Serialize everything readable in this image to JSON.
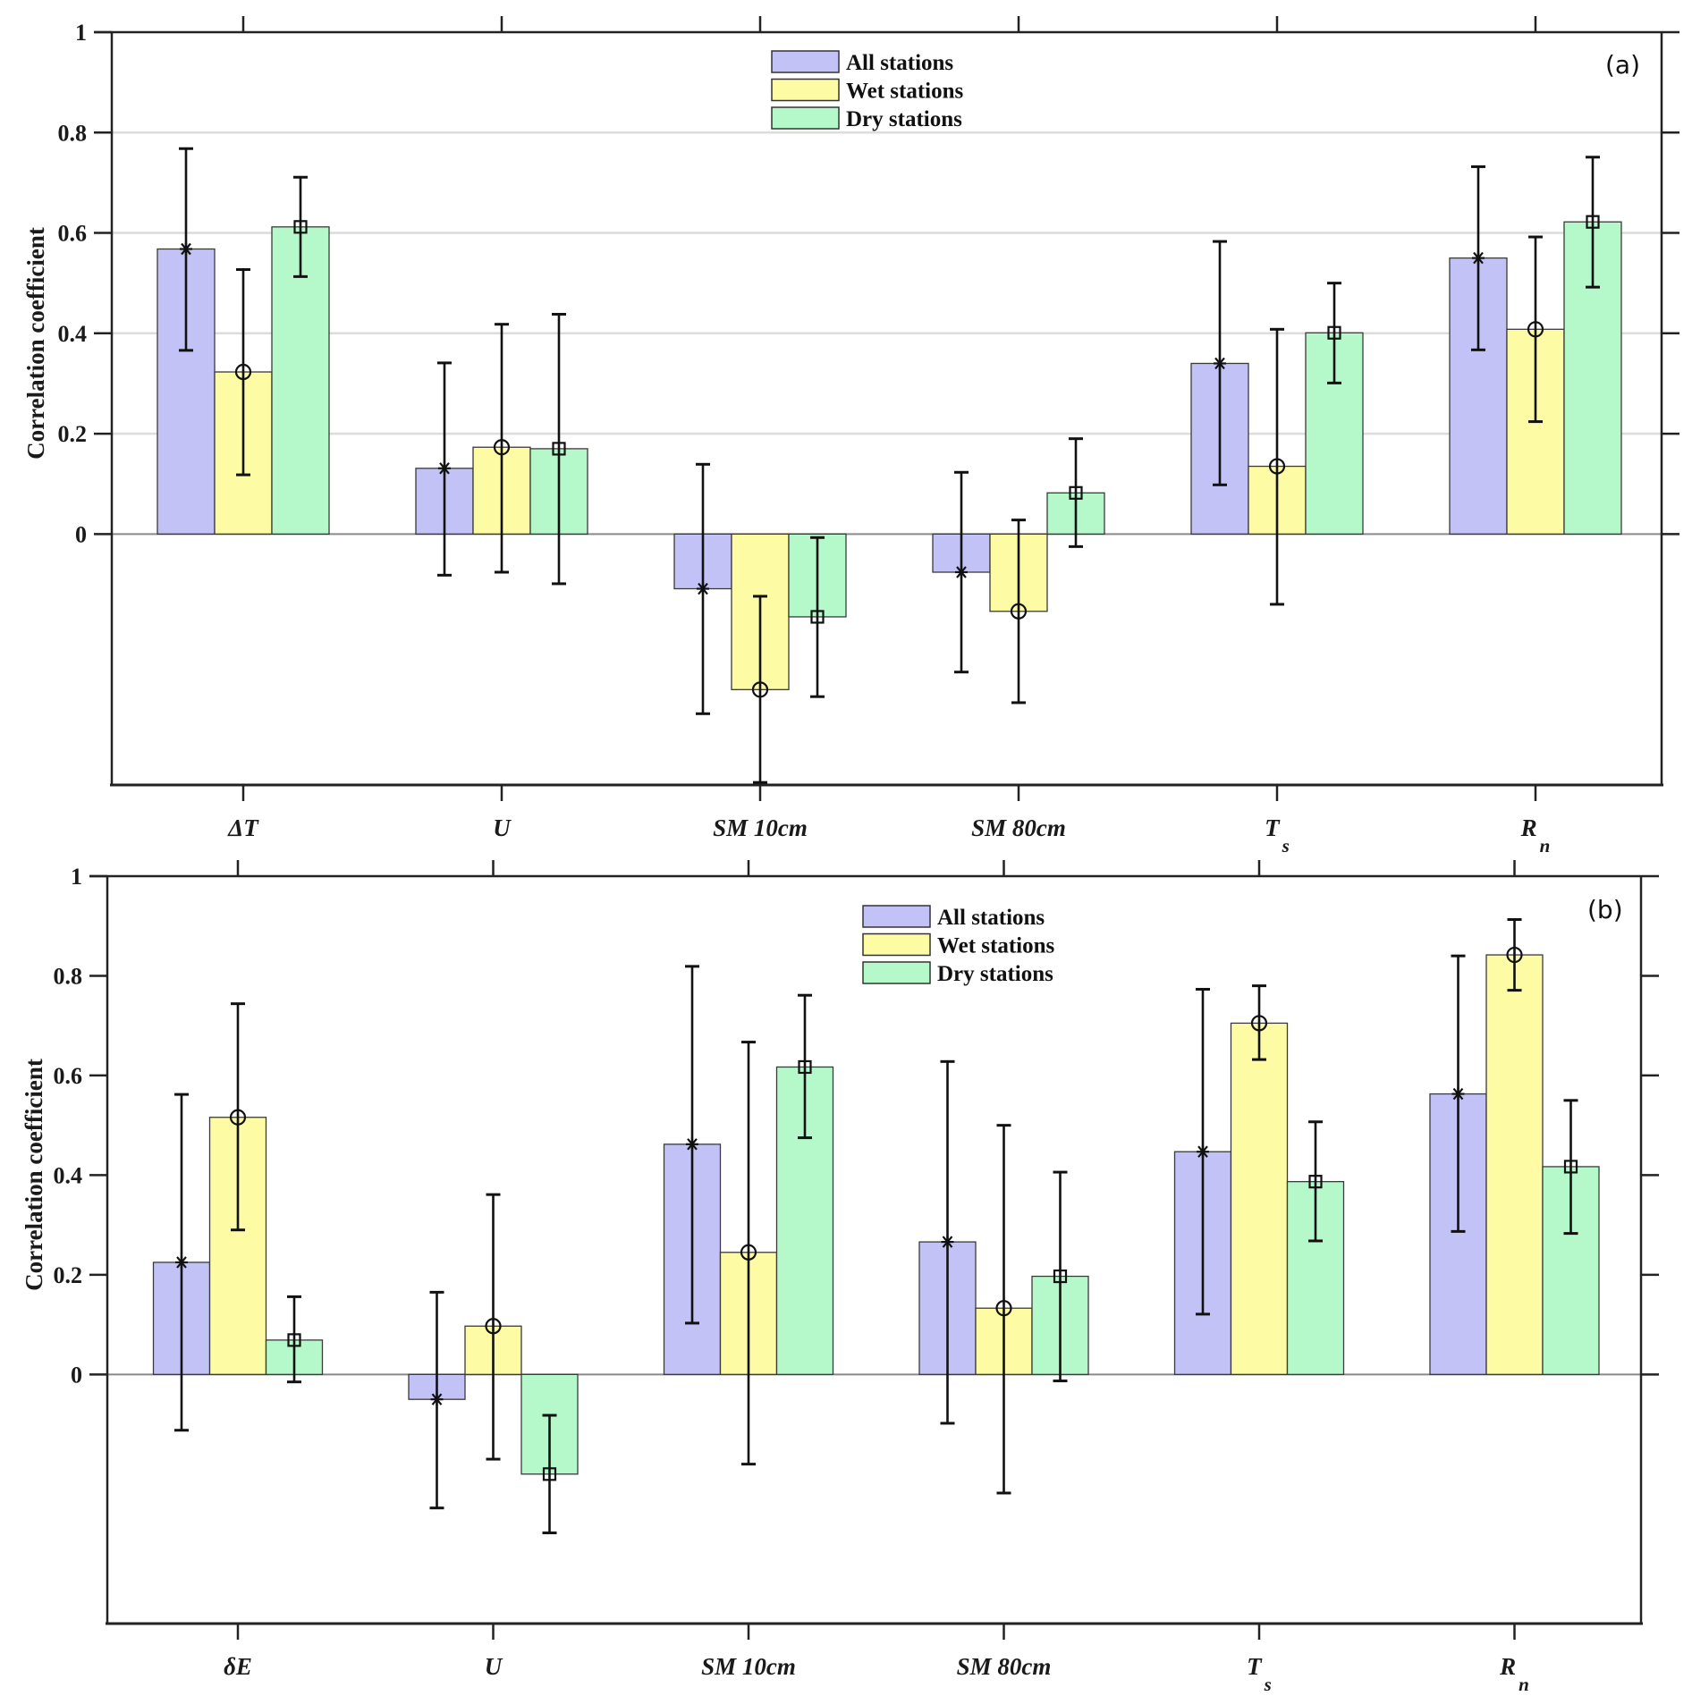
{
  "chart_data": [
    {
      "type": "bar",
      "panel_label": "(a)",
      "title": "",
      "xlabel": "",
      "ylabel": "Correlation coefficient",
      "ylim": [
        -0.5,
        1
      ],
      "yticks": [
        0,
        0.2,
        0.4,
        0.6,
        0.8,
        1
      ],
      "ytick_labels": [
        "0",
        "0.2",
        "0.4",
        "0.6",
        "0.8",
        "1"
      ],
      "grid": true,
      "legend_position": "top-center",
      "categories": [
        {
          "main": "ΔT",
          "sub": ""
        },
        {
          "main": "U",
          "sub": ""
        },
        {
          "main": "SM 10cm",
          "sub": ""
        },
        {
          "main": "SM 80cm",
          "sub": ""
        },
        {
          "main": "T",
          "sub": "s"
        },
        {
          "main": "R",
          "sub": "n"
        }
      ],
      "series": [
        {
          "name": "All stations",
          "color": "#c2c2f7",
          "marker": "asterisk",
          "values": [
            0.568,
            0.131,
            -0.109,
            -0.076,
            0.34,
            0.55
          ],
          "err_low": [
            0.366,
            -0.082,
            -0.358,
            -0.275,
            0.098,
            0.367
          ],
          "err_high": [
            0.768,
            0.341,
            0.139,
            0.123,
            0.583,
            0.732
          ]
        },
        {
          "name": "Wet stations",
          "color": "#fdfba3",
          "marker": "circle",
          "values": [
            0.323,
            0.173,
            -0.31,
            -0.154,
            0.135,
            0.408
          ],
          "err_low": [
            0.118,
            -0.076,
            -0.495,
            -0.336,
            -0.14,
            0.224
          ],
          "err_high": [
            0.527,
            0.418,
            -0.124,
            0.028,
            0.408,
            0.592
          ]
        },
        {
          "name": "Dry stations",
          "color": "#b5f9cb",
          "marker": "square",
          "values": [
            0.612,
            0.17,
            -0.165,
            0.082,
            0.401,
            0.622
          ],
          "err_low": [
            0.513,
            -0.099,
            -0.324,
            -0.025,
            0.301,
            0.492
          ],
          "err_high": [
            0.711,
            0.438,
            -0.007,
            0.19,
            0.5,
            0.751
          ]
        }
      ]
    },
    {
      "type": "bar",
      "panel_label": "(b)",
      "title": "",
      "xlabel": "",
      "ylabel": "Correlation coefficient",
      "ylim": [
        -0.5,
        1
      ],
      "yticks": [
        0,
        0.2,
        0.4,
        0.6,
        0.8,
        1
      ],
      "ytick_labels": [
        "0",
        "0.2",
        "0.4",
        "0.6",
        "0.8",
        "1"
      ],
      "grid": false,
      "legend_position": "top-center",
      "categories": [
        {
          "main": "δE",
          "sub": ""
        },
        {
          "main": "U",
          "sub": ""
        },
        {
          "main": "SM 10cm",
          "sub": ""
        },
        {
          "main": "SM 80cm",
          "sub": ""
        },
        {
          "main": "T",
          "sub": "s"
        },
        {
          "main": "R",
          "sub": "n"
        }
      ],
      "series": [
        {
          "name": "All stations",
          "color": "#c2c2f7",
          "marker": "asterisk",
          "values": [
            0.225,
            -0.05,
            0.462,
            0.266,
            0.447,
            0.563
          ],
          "err_low": [
            -0.112,
            -0.268,
            0.103,
            -0.098,
            0.121,
            0.287
          ],
          "err_high": [
            0.562,
            0.165,
            0.819,
            0.628,
            0.773,
            0.84
          ]
        },
        {
          "name": "Wet stations",
          "color": "#fdfba3",
          "marker": "circle",
          "values": [
            0.516,
            0.097,
            0.245,
            0.133,
            0.705,
            0.842
          ],
          "err_low": [
            0.29,
            -0.17,
            -0.18,
            -0.238,
            0.632,
            0.771
          ],
          "err_high": [
            0.744,
            0.361,
            0.667,
            0.5,
            0.78,
            0.913
          ]
        },
        {
          "name": "Dry stations",
          "color": "#b5f9cb",
          "marker": "square",
          "values": [
            0.069,
            -0.2,
            0.617,
            0.197,
            0.387,
            0.417
          ],
          "err_low": [
            -0.015,
            -0.318,
            0.475,
            -0.013,
            0.268,
            0.283
          ],
          "err_high": [
            0.156,
            -0.082,
            0.761,
            0.406,
            0.507,
            0.55
          ]
        }
      ]
    }
  ]
}
